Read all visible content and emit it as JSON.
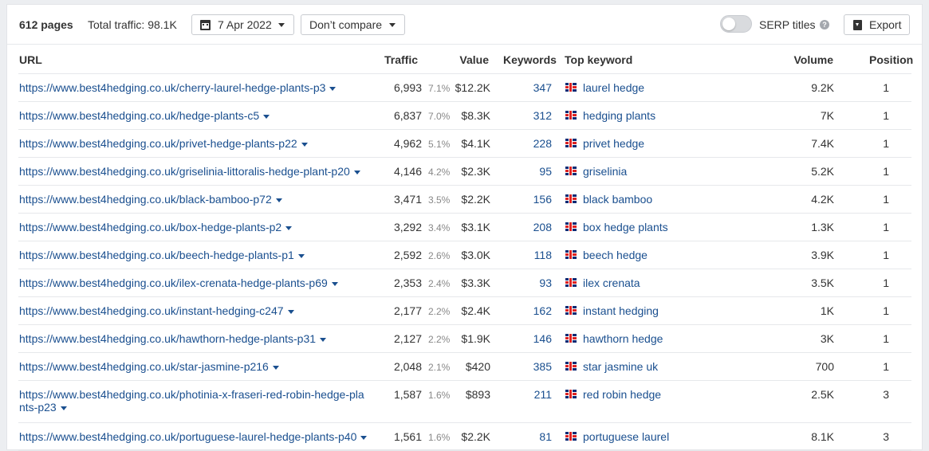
{
  "toolbar": {
    "pages": "612 pages",
    "total_traffic": "Total traffic: 98.1K",
    "date": "7 Apr 2022",
    "compare": "Don’t compare",
    "serp_titles": "SERP titles",
    "export": "Export"
  },
  "columns": {
    "url": "URL",
    "traffic": "Traffic",
    "value": "Value",
    "keywords": "Keywords",
    "top_keyword": "Top keyword",
    "volume": "Volume",
    "position": "Position"
  },
  "rows": [
    {
      "url": "https://www.best4hedging.co.uk/cherry-laurel-hedge-plants-p3",
      "traffic": "6,993",
      "pct": "7.1%",
      "value": "$12.2K",
      "keywords": "347",
      "top_keyword": "laurel hedge",
      "volume": "9.2K",
      "position": "1"
    },
    {
      "url": "https://www.best4hedging.co.uk/hedge-plants-c5",
      "traffic": "6,837",
      "pct": "7.0%",
      "value": "$8.3K",
      "keywords": "312",
      "top_keyword": "hedging plants",
      "volume": "7K",
      "position": "1"
    },
    {
      "url": "https://www.best4hedging.co.uk/privet-hedge-plants-p22",
      "traffic": "4,962",
      "pct": "5.1%",
      "value": "$4.1K",
      "keywords": "228",
      "top_keyword": "privet hedge",
      "volume": "7.4K",
      "position": "1"
    },
    {
      "url": "https://www.best4hedging.co.uk/griselinia-littoralis-hedge-plant-p20",
      "traffic": "4,146",
      "pct": "4.2%",
      "value": "$2.3K",
      "keywords": "95",
      "top_keyword": "griselinia",
      "volume": "5.2K",
      "position": "1"
    },
    {
      "url": "https://www.best4hedging.co.uk/black-bamboo-p72",
      "traffic": "3,471",
      "pct": "3.5%",
      "value": "$2.2K",
      "keywords": "156",
      "top_keyword": "black bamboo",
      "volume": "4.2K",
      "position": "1"
    },
    {
      "url": "https://www.best4hedging.co.uk/box-hedge-plants-p2",
      "traffic": "3,292",
      "pct": "3.4%",
      "value": "$3.1K",
      "keywords": "208",
      "top_keyword": "box hedge plants",
      "volume": "1.3K",
      "position": "1"
    },
    {
      "url": "https://www.best4hedging.co.uk/beech-hedge-plants-p1",
      "traffic": "2,592",
      "pct": "2.6%",
      "value": "$3.0K",
      "keywords": "118",
      "top_keyword": "beech hedge",
      "volume": "3.9K",
      "position": "1"
    },
    {
      "url": "https://www.best4hedging.co.uk/ilex-crenata-hedge-plants-p69",
      "traffic": "2,353",
      "pct": "2.4%",
      "value": "$3.3K",
      "keywords": "93",
      "top_keyword": "ilex crenata",
      "volume": "3.5K",
      "position": "1"
    },
    {
      "url": "https://www.best4hedging.co.uk/instant-hedging-c247",
      "traffic": "2,177",
      "pct": "2.2%",
      "value": "$2.4K",
      "keywords": "162",
      "top_keyword": "instant hedging",
      "volume": "1K",
      "position": "1"
    },
    {
      "url": "https://www.best4hedging.co.uk/hawthorn-hedge-plants-p31",
      "traffic": "2,127",
      "pct": "2.2%",
      "value": "$1.9K",
      "keywords": "146",
      "top_keyword": "hawthorn hedge",
      "volume": "3K",
      "position": "1"
    },
    {
      "url": "https://www.best4hedging.co.uk/star-jasmine-p216",
      "traffic": "2,048",
      "pct": "2.1%",
      "value": "$420",
      "keywords": "385",
      "top_keyword": "star jasmine uk",
      "volume": "700",
      "position": "1"
    },
    {
      "url": "https://www.best4hedging.co.uk/photinia-x-fraseri-red-robin-hedge-plants-p23",
      "traffic": "1,587",
      "pct": "1.6%",
      "value": "$893",
      "keywords": "211",
      "top_keyword": "red robin hedge",
      "volume": "2.5K",
      "position": "3"
    },
    {
      "url": "https://www.best4hedging.co.uk/portuguese-laurel-hedge-plants-p40",
      "traffic": "1,561",
      "pct": "1.6%",
      "value": "$2.2K",
      "keywords": "81",
      "top_keyword": "portuguese laurel",
      "volume": "8.1K",
      "position": "3"
    }
  ]
}
